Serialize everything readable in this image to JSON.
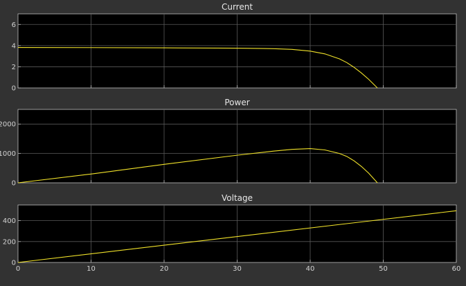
{
  "chart_data": [
    {
      "type": "line",
      "title": "Current",
      "xlim": [
        0,
        60
      ],
      "ylim": [
        0,
        7
      ],
      "xticks": [
        0,
        10,
        20,
        30,
        40,
        50,
        60
      ],
      "xtick_labels": [
        "",
        "",
        "",
        "",
        "",
        "",
        ""
      ],
      "yticks": [
        0,
        2,
        4,
        6
      ],
      "ytick_labels": [
        "0",
        "2",
        "4",
        "6"
      ],
      "grid": true,
      "series": [
        {
          "color": "#f2e32a",
          "x": [
            0,
            10,
            20,
            30,
            35,
            37.5,
            40,
            42,
            44,
            45,
            46,
            47,
            48,
            49.2
          ],
          "y": [
            3.82,
            3.81,
            3.79,
            3.76,
            3.71,
            3.64,
            3.48,
            3.22,
            2.75,
            2.4,
            1.95,
            1.42,
            0.82,
            0
          ]
        }
      ]
    },
    {
      "type": "line",
      "title": "Power",
      "xlim": [
        0,
        60
      ],
      "ylim": [
        0,
        2500
      ],
      "xticks": [
        0,
        10,
        20,
        30,
        40,
        50,
        60
      ],
      "xtick_labels": [
        "",
        "",
        "",
        "",
        "",
        "",
        ""
      ],
      "yticks": [
        0,
        1000,
        2000
      ],
      "ytick_labels": [
        "0",
        "1000",
        "2000"
      ],
      "grid": true,
      "series": [
        {
          "color": "#f2e32a",
          "x": [
            0,
            10,
            20,
            30,
            35,
            37.5,
            40,
            42,
            44,
            45,
            46,
            47,
            48,
            49.2
          ],
          "y": [
            0,
            300,
            630,
            940,
            1080,
            1140,
            1165,
            1120,
            1000,
            900,
            750,
            560,
            330,
            0
          ]
        }
      ]
    },
    {
      "type": "line",
      "title": "Voltage",
      "xlim": [
        0,
        60
      ],
      "ylim": [
        0,
        550
      ],
      "xticks": [
        0,
        10,
        20,
        30,
        40,
        50,
        60
      ],
      "xtick_labels": [
        "0",
        "10",
        "20",
        "30",
        "40",
        "50",
        "60"
      ],
      "yticks": [
        0,
        200,
        400
      ],
      "ytick_labels": [
        "0",
        "200",
        "400"
      ],
      "grid": true,
      "series": [
        {
          "color": "#f2e32a",
          "x": [
            0,
            60
          ],
          "y": [
            0,
            495
          ]
        }
      ]
    }
  ]
}
